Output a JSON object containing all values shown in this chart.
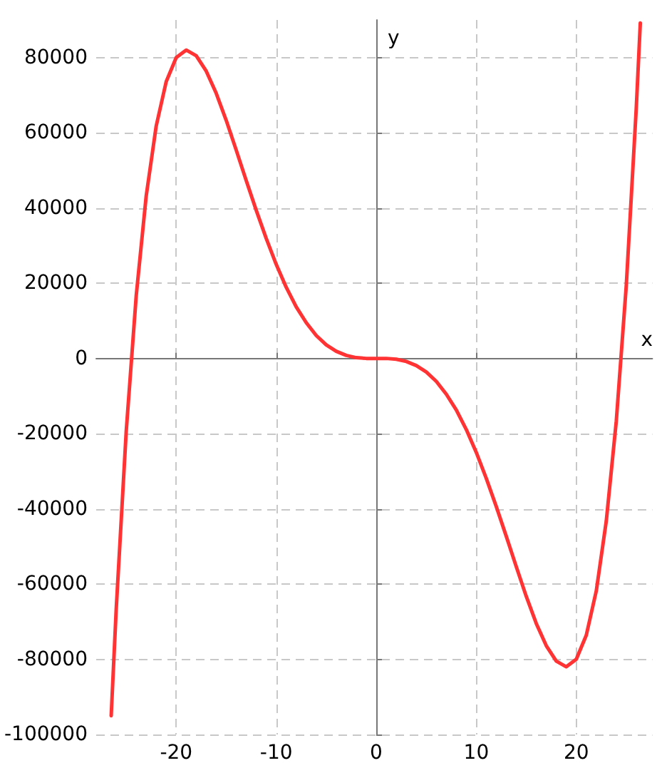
{
  "chart_data": {
    "type": "line",
    "xlabel": "x",
    "ylabel": "y",
    "series": [
      {
        "color": "#ff3333",
        "x": [
          -26.5,
          -26,
          -25,
          -24,
          -23,
          -22,
          -21,
          -20,
          -19,
          -18,
          -17,
          -16,
          -15,
          -14,
          -13,
          -12,
          -11,
          -10,
          -9,
          -8,
          -7,
          -6,
          -5,
          -4,
          -3,
          -2,
          -1,
          0,
          1,
          2,
          3,
          4,
          5,
          6,
          7,
          8,
          9,
          10,
          11,
          12,
          13,
          14,
          15,
          16,
          17,
          18,
          19,
          20,
          21,
          22,
          23,
          24,
          25,
          26,
          26.4
        ],
        "values": [
          -95000,
          -66800,
          -19500,
          16600,
          43200,
          61800,
          73600,
          80000,
          82000,
          80500,
          76400,
          70500,
          63300,
          55400,
          47300,
          39400,
          31900,
          25000,
          18900,
          13700,
          9500,
          6100,
          3600,
          1900,
          800,
          200,
          0,
          0,
          0,
          -200,
          -800,
          -1900,
          -3600,
          -6100,
          -9500,
          -13700,
          -18900,
          -25000,
          -31900,
          -39400,
          -47300,
          -55400,
          -63300,
          -70500,
          -76400,
          -80500,
          -82000,
          -80000,
          -73600,
          -61800,
          -43200,
          -16600,
          19500,
          66800,
          89200
        ]
      }
    ],
    "xlim": [
      -28,
      27.6
    ],
    "ylim": [
      -100000,
      90000
    ],
    "xticks": [
      -20,
      -10,
      0,
      10,
      20
    ],
    "yticks": [
      -100000,
      -80000,
      -60000,
      -40000,
      -20000,
      0,
      20000,
      40000,
      60000,
      80000
    ],
    "grid": true,
    "marker": "none",
    "line_style": "solid"
  }
}
